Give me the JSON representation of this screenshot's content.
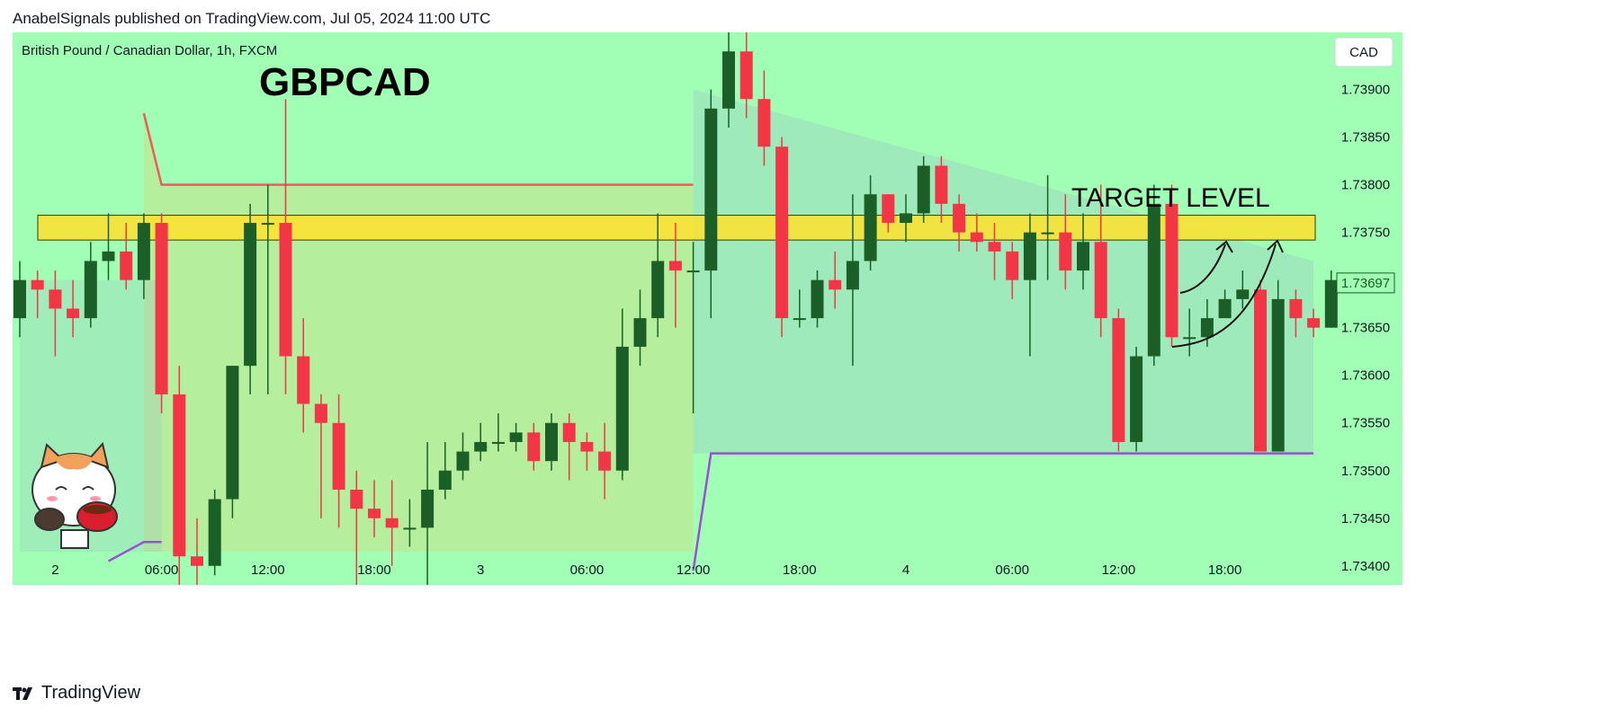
{
  "header": {
    "caption": "AnabelSignals published on TradingView.com, Jul 05, 2024 11:00 UTC"
  },
  "footer": {
    "brand": "TradingView"
  },
  "colors": {
    "background": "#a0ffb4",
    "bull": "#1b5e27",
    "bear": "#f23645",
    "target_zone": "#ffe22d",
    "upper_line": "#f05a5a",
    "lower_line": "#9c4fd0"
  },
  "chart_data": {
    "type": "candlestick",
    "symbol_line": "British Pound / Canadian Dollar, 1h, FXCM",
    "title": "GBPCAD",
    "currency_label": "CAD",
    "last_price_label": "1.73697",
    "annotation": "TARGET LEVEL",
    "ylim": [
      1.7338,
      1.7396
    ],
    "y_ticks": [
      "1.73400",
      "1.73450",
      "1.73500",
      "1.73550",
      "1.73600",
      "1.73650",
      "1.73700",
      "1.73750",
      "1.73800",
      "1.73850",
      "1.73900"
    ],
    "x_ticks": [
      {
        "label": "2",
        "i": 2
      },
      {
        "label": "06:00",
        "i": 8
      },
      {
        "label": "12:00",
        "i": 14
      },
      {
        "label": "18:00",
        "i": 20
      },
      {
        "label": "3",
        "i": 26
      },
      {
        "label": "06:00",
        "i": 32
      },
      {
        "label": "12:00",
        "i": 38
      },
      {
        "label": "18:00",
        "i": 44
      },
      {
        "label": "4",
        "i": 50
      },
      {
        "label": "06:00",
        "i": 56
      },
      {
        "label": "12:00",
        "i": 62
      },
      {
        "label": "18:00",
        "i": 68
      }
    ],
    "target_zone": [
      1.73742,
      1.73768
    ],
    "candles": [
      [
        1.7366,
        1.737,
        1.7364,
        1.7372
      ],
      [
        1.737,
        1.7369,
        1.7366,
        1.7371
      ],
      [
        1.7369,
        1.7367,
        1.7362,
        1.7371
      ],
      [
        1.7367,
        1.7366,
        1.7364,
        1.737
      ],
      [
        1.7366,
        1.7372,
        1.7365,
        1.7374
      ],
      [
        1.7372,
        1.7373,
        1.737,
        1.7377
      ],
      [
        1.7373,
        1.737,
        1.7369,
        1.7376
      ],
      [
        1.737,
        1.7376,
        1.7368,
        1.7377
      ],
      [
        1.7376,
        1.7358,
        1.7356,
        1.7377
      ],
      [
        1.7358,
        1.7341,
        1.7338,
        1.7361
      ],
      [
        1.7341,
        1.734,
        1.7338,
        1.7345
      ],
      [
        1.734,
        1.7347,
        1.7339,
        1.7348
      ],
      [
        1.7347,
        1.7361,
        1.7345,
        1.7361
      ],
      [
        1.7361,
        1.7376,
        1.7358,
        1.7378
      ],
      [
        1.7376,
        1.7376,
        1.7358,
        1.738
      ],
      [
        1.7376,
        1.7362,
        1.7358,
        1.7389
      ],
      [
        1.7362,
        1.7357,
        1.7354,
        1.7366
      ],
      [
        1.7357,
        1.7355,
        1.7345,
        1.7358
      ],
      [
        1.7355,
        1.7348,
        1.7344,
        1.7358
      ],
      [
        1.7348,
        1.7346,
        1.7338,
        1.735
      ],
      [
        1.7346,
        1.7345,
        1.7343,
        1.7349
      ],
      [
        1.7345,
        1.7344,
        1.734,
        1.7349
      ],
      [
        1.7344,
        1.7344,
        1.7342,
        1.7347
      ],
      [
        1.7344,
        1.7348,
        1.7338,
        1.7353
      ],
      [
        1.7348,
        1.735,
        1.7347,
        1.7353
      ],
      [
        1.735,
        1.7352,
        1.7349,
        1.7354
      ],
      [
        1.7352,
        1.7353,
        1.7351,
        1.7355
      ],
      [
        1.7353,
        1.7353,
        1.7352,
        1.7356
      ],
      [
        1.7353,
        1.7354,
        1.7352,
        1.7355
      ],
      [
        1.7354,
        1.7351,
        1.735,
        1.7355
      ],
      [
        1.7351,
        1.7355,
        1.735,
        1.7356
      ],
      [
        1.7355,
        1.7353,
        1.7349,
        1.7356
      ],
      [
        1.7353,
        1.7352,
        1.735,
        1.7354
      ],
      [
        1.7352,
        1.735,
        1.7347,
        1.7355
      ],
      [
        1.735,
        1.7363,
        1.7349,
        1.7367
      ],
      [
        1.7363,
        1.7366,
        1.7361,
        1.7369
      ],
      [
        1.7366,
        1.7372,
        1.7364,
        1.7377
      ],
      [
        1.7372,
        1.7371,
        1.7365,
        1.7376
      ],
      [
        1.7371,
        1.7371,
        1.7356,
        1.7374
      ],
      [
        1.7371,
        1.7388,
        1.7366,
        1.739
      ],
      [
        1.7388,
        1.7394,
        1.7386,
        1.7396
      ],
      [
        1.7394,
        1.7389,
        1.7387,
        1.7396
      ],
      [
        1.7389,
        1.7384,
        1.7382,
        1.7392
      ],
      [
        1.7384,
        1.7366,
        1.7364,
        1.7385
      ],
      [
        1.7366,
        1.7366,
        1.7365,
        1.7369
      ],
      [
        1.7366,
        1.737,
        1.7365,
        1.7371
      ],
      [
        1.737,
        1.7369,
        1.7367,
        1.7373
      ],
      [
        1.7369,
        1.7372,
        1.7361,
        1.7379
      ],
      [
        1.7372,
        1.7379,
        1.7371,
        1.7381
      ],
      [
        1.7379,
        1.7376,
        1.7375,
        1.7379
      ],
      [
        1.7376,
        1.7377,
        1.7374,
        1.7379
      ],
      [
        1.7377,
        1.7382,
        1.7376,
        1.7383
      ],
      [
        1.7382,
        1.7378,
        1.7376,
        1.7383
      ],
      [
        1.7378,
        1.7375,
        1.7373,
        1.7379
      ],
      [
        1.7375,
        1.7374,
        1.7373,
        1.7377
      ],
      [
        1.7374,
        1.7373,
        1.737,
        1.7376
      ],
      [
        1.7373,
        1.737,
        1.7368,
        1.7374
      ],
      [
        1.737,
        1.7375,
        1.7362,
        1.7377
      ],
      [
        1.7375,
        1.7375,
        1.737,
        1.7381
      ],
      [
        1.7375,
        1.7371,
        1.7369,
        1.7379
      ],
      [
        1.7371,
        1.7374,
        1.7369,
        1.7377
      ],
      [
        1.7374,
        1.7366,
        1.7364,
        1.738
      ],
      [
        1.7366,
        1.7353,
        1.7352,
        1.7367
      ],
      [
        1.7353,
        1.7362,
        1.7352,
        1.7363
      ],
      [
        1.7362,
        1.7378,
        1.7361,
        1.738
      ],
      [
        1.7378,
        1.7364,
        1.7363,
        1.738
      ],
      [
        1.7364,
        1.7364,
        1.7362,
        1.7367
      ],
      [
        1.7364,
        1.7366,
        1.7363,
        1.7368
      ],
      [
        1.7366,
        1.7368,
        1.7366,
        1.7369
      ],
      [
        1.7368,
        1.7369,
        1.7367,
        1.7371
      ],
      [
        1.7369,
        1.7352,
        1.7352,
        1.737
      ],
      [
        1.7352,
        1.7368,
        1.7352,
        1.737
      ],
      [
        1.7368,
        1.7366,
        1.7364,
        1.7369
      ],
      [
        1.7366,
        1.7365,
        1.7364,
        1.7367
      ],
      [
        1.7365,
        1.737,
        1.7365,
        1.7371
      ]
    ],
    "upper_line": [
      [
        7,
        1.73875
      ],
      [
        8,
        1.738
      ],
      [
        38,
        1.738
      ]
    ],
    "lower_line": [
      [
        5,
        1.73405
      ],
      [
        7,
        1.73425
      ],
      [
        8,
        1.73425
      ]
    ],
    "lower_line_2": [
      [
        38,
        1.73395
      ],
      [
        39,
        1.73518
      ],
      [
        73,
        1.73518
      ]
    ]
  }
}
